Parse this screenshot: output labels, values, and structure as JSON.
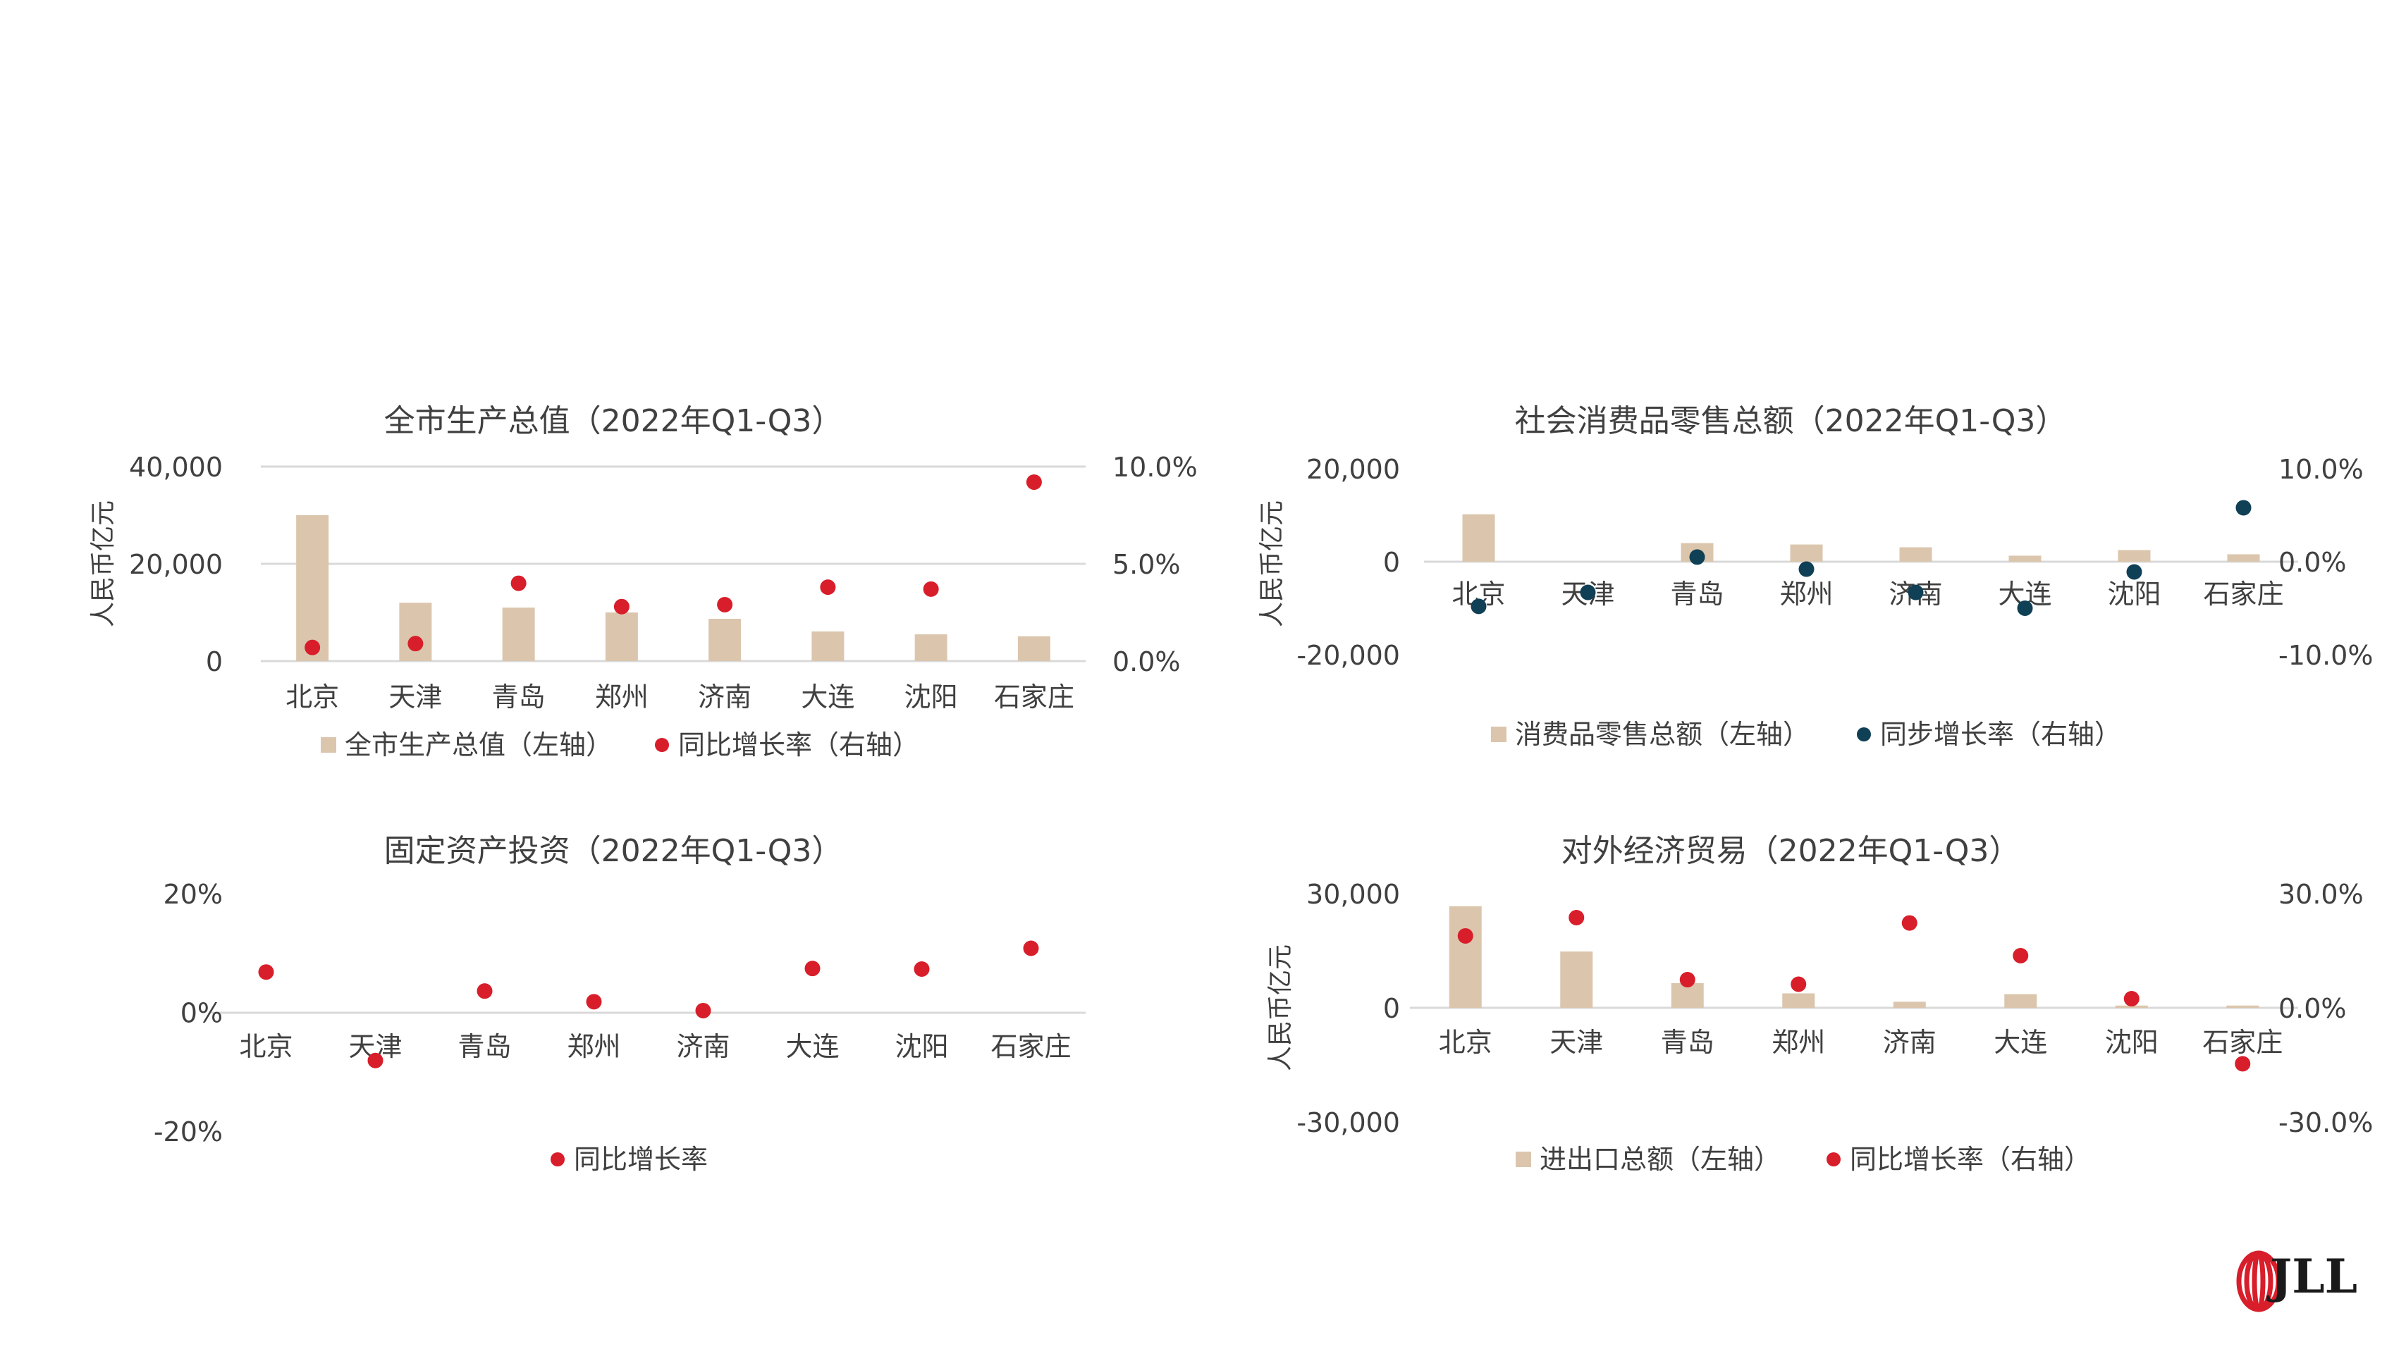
{
  "colors": {
    "bar": "#dbc6ad",
    "red": "#d81e2a",
    "navy": "#0f4055",
    "axis": "#d9d9d9",
    "text": "#404040"
  },
  "logo": {
    "text": "JLL",
    "icon": "jll-ribbon-logo-icon"
  },
  "chart_data": [
    {
      "id": "gdp",
      "type": "bar",
      "title": "全市生产总值（2022年Q1-Q3）",
      "ylabel": "人民币亿元",
      "categories": [
        "北京",
        "天津",
        "青岛",
        "郑州",
        "济南",
        "大连",
        "沈阳",
        "石家庄"
      ],
      "series": [
        {
          "name": "全市生产总值（左轴）",
          "type": "bar",
          "axis": "left",
          "color": "#dbc6ad",
          "values": [
            30000,
            12000,
            11000,
            10000,
            8700,
            6100,
            5500,
            5100
          ]
        },
        {
          "name": "同比增长率（右轴）",
          "type": "scatter",
          "axis": "right",
          "color": "#d81e2a",
          "values": [
            0.7,
            0.9,
            4.0,
            2.8,
            2.9,
            3.8,
            3.7,
            9.2
          ]
        }
      ],
      "ylim": [
        0,
        40000
      ],
      "y2lim": [
        0,
        10
      ],
      "yticks": [
        "0",
        "20,000",
        "40,000"
      ],
      "y2ticks": [
        "0.0%",
        "5.0%",
        "10.0%"
      ],
      "grid": true,
      "legend": "bottom"
    },
    {
      "id": "retail",
      "type": "bar",
      "title": "社会消费品零售总额（2022年Q1-Q3）",
      "ylabel": "人民币亿元",
      "categories": [
        "北京",
        "天津",
        "青岛",
        "郑州",
        "济南",
        "大连",
        "沈阳",
        "石家庄"
      ],
      "series": [
        {
          "name": "消费品零售总额（左轴）",
          "type": "bar",
          "axis": "left",
          "color": "#dbc6ad",
          "values": [
            10200,
            0,
            4000,
            3700,
            3100,
            1300,
            2500,
            1600
          ]
        },
        {
          "name": "同步增长率（右轴）",
          "type": "scatter",
          "axis": "right",
          "color": "#0f4055",
          "values": [
            -4.8,
            -3.3,
            0.5,
            -0.8,
            -3.3,
            -5.0,
            -1.1,
            5.8
          ]
        }
      ],
      "ylim": [
        -20000,
        20000
      ],
      "y2lim": [
        -10,
        10
      ],
      "yticks": [
        "-20,000",
        "0",
        "20,000"
      ],
      "y2ticks": [
        "-10.0%",
        "0.0%",
        "10.0%"
      ],
      "grid": true,
      "legend": "bottom"
    },
    {
      "id": "fai",
      "type": "scatter",
      "title": "固定资产投资（2022年Q1-Q3）",
      "ylabel": "",
      "categories": [
        "北京",
        "天津",
        "青岛",
        "郑州",
        "济南",
        "大连",
        "沈阳",
        "石家庄"
      ],
      "series": [
        {
          "name": "同比增长率",
          "type": "scatter",
          "axis": "left",
          "color": "#d81e2a",
          "values": [
            6.8,
            -8.1,
            3.6,
            1.8,
            0.3,
            7.4,
            7.3,
            10.8
          ]
        }
      ],
      "ylim": [
        -20,
        20
      ],
      "yticks": [
        "-20%",
        "0%",
        "20%"
      ],
      "y2ticks": [],
      "grid": true,
      "legend": "bottom"
    },
    {
      "id": "trade",
      "type": "bar",
      "title": "对外经济贸易（2022年Q1-Q3）",
      "ylabel": "人民币亿元",
      "categories": [
        "北京",
        "天津",
        "青岛",
        "郑州",
        "济南",
        "大连",
        "沈阳",
        "石家庄"
      ],
      "series": [
        {
          "name": "进出口总额（左轴）",
          "type": "bar",
          "axis": "left",
          "color": "#dbc6ad",
          "values": [
            26700,
            14800,
            6500,
            3800,
            1600,
            3600,
            600,
            600
          ]
        },
        {
          "name": "同比增长率（右轴）",
          "type": "scatter",
          "axis": "right",
          "color": "#d81e2a",
          "values": [
            18.9,
            23.7,
            7.4,
            6.2,
            22.3,
            13.7,
            2.4,
            -14.7
          ]
        }
      ],
      "ylim": [
        -30000,
        30000
      ],
      "y2lim": [
        -30,
        30
      ],
      "yticks": [
        "-30,000",
        "0",
        "30,000"
      ],
      "y2ticks": [
        "-30.0%",
        "0.0%",
        "30.0%"
      ],
      "grid": true,
      "legend": "bottom"
    }
  ]
}
